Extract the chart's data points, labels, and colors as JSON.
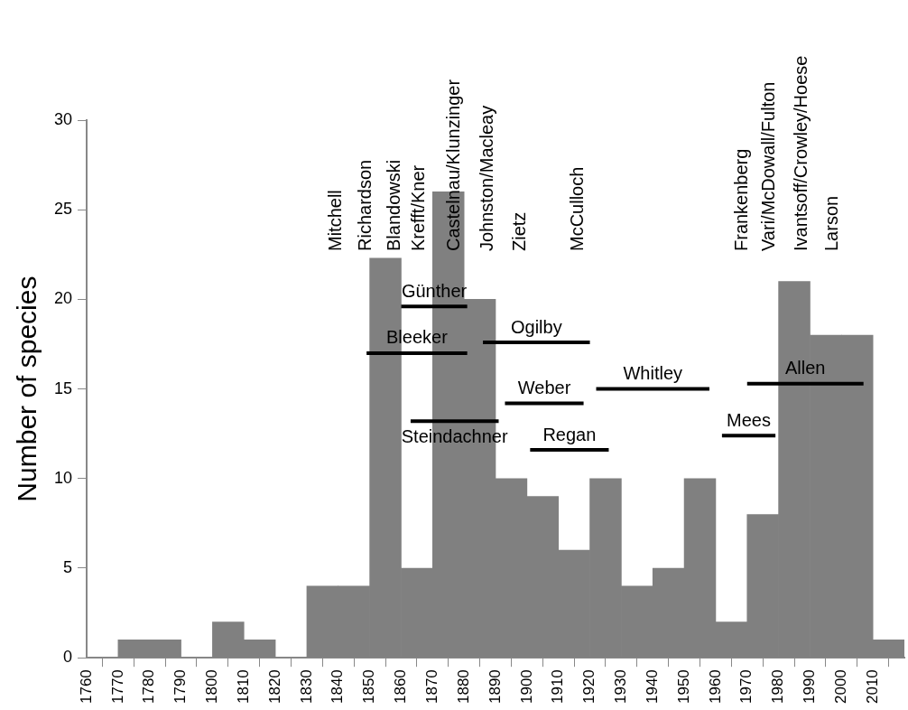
{
  "chart_data": {
    "type": "histogram",
    "ylabel": "Number of species",
    "bins": [
      1760,
      1770,
      1780,
      1790,
      1800,
      1810,
      1820,
      1830,
      1840,
      1850,
      1860,
      1870,
      1880,
      1890,
      1900,
      1910,
      1920,
      1930,
      1940,
      1950,
      1960,
      1970,
      1980,
      1990,
      2000,
      2010,
      2020
    ],
    "values": [
      0,
      1,
      1,
      0,
      2,
      1,
      0,
      4,
      4,
      22.3,
      5,
      26,
      20,
      10,
      9,
      6,
      10,
      4,
      5,
      10,
      2,
      8,
      21,
      18,
      18,
      1
    ],
    "color": "#808080",
    "series": [
      {
        "name": "Günther",
        "type": "line",
        "color": "#000000",
        "x": [
          1860,
          1881
        ],
        "values": [
          19.6,
          19.6
        ]
      },
      {
        "name": "Bleeker",
        "type": "line",
        "color": "#000000",
        "x": [
          1849,
          1881
        ],
        "values": [
          17,
          17
        ]
      },
      {
        "name": "Ogilby",
        "type": "line",
        "color": "#000000",
        "x": [
          1886,
          1920
        ],
        "values": [
          17.6,
          17.6
        ]
      },
      {
        "name": "Weber",
        "type": "line",
        "color": "#000000",
        "x": [
          1893,
          1918
        ],
        "values": [
          14.2,
          14.2
        ]
      },
      {
        "name": "Steindachner",
        "type": "line",
        "color": "#000000",
        "x": [
          1863,
          1891
        ],
        "values": [
          13.2,
          13.2
        ]
      },
      {
        "name": "Regan",
        "type": "line",
        "color": "#000000",
        "x": [
          1901,
          1926
        ],
        "values": [
          11.6,
          11.6
        ]
      },
      {
        "name": "Whitley",
        "type": "line",
        "color": "#000000",
        "x": [
          1922,
          1958
        ],
        "values": [
          15,
          15
        ]
      },
      {
        "name": "Mees",
        "type": "line",
        "color": "#000000",
        "x": [
          1962,
          1979
        ],
        "values": [
          12.4,
          12.4
        ]
      },
      {
        "name": "Allen",
        "type": "line",
        "color": "#000000",
        "x": [
          1970,
          2007
        ],
        "values": [
          15.3,
          15.3
        ]
      }
    ],
    "annotations": [
      "Mitchell",
      "Richardson",
      "Blandowski",
      "Krefft/Kner",
      "Castelnau/Klunzinger",
      "Johnston/Macleay",
      "Zietz",
      "McCulloch",
      "Frankenberg",
      "Vari/McDowall/Fulton",
      "Ivantsoff/Crowley/Hoese",
      "Larson"
    ],
    "xlim": [
      1760,
      2020
    ],
    "ylim": [
      0,
      30
    ],
    "xticks": [
      1760,
      1770,
      1780,
      1790,
      1800,
      1810,
      1820,
      1830,
      1840,
      1850,
      1860,
      1870,
      1880,
      1890,
      1900,
      1910,
      1920,
      1930,
      1940,
      1950,
      1960,
      1970,
      1980,
      1990,
      2000,
      2010
    ],
    "yticks": [
      0,
      5,
      10,
      15,
      20,
      25,
      30
    ],
    "grid": false,
    "legend": false
  }
}
